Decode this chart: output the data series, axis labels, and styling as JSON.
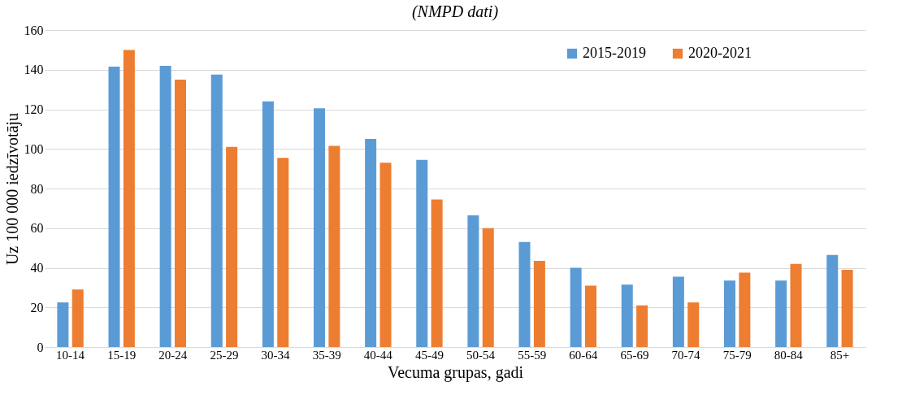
{
  "chart_data": {
    "type": "bar",
    "title": "(NMPD dati)",
    "xlabel": "Vecuma grupas, gadi",
    "ylabel": "Uz 100 000 iedzīvotāju",
    "categories": [
      "10-14",
      "15-19",
      "20-24",
      "25-29",
      "30-34",
      "35-39",
      "40-44",
      "45-49",
      "50-54",
      "55-59",
      "60-64",
      "65-69",
      "70-74",
      "75-79",
      "80-84",
      "85+"
    ],
    "series": [
      {
        "name": "2015-2019",
        "color": "#5b9bd5",
        "values": [
          22.5,
          141.5,
          142,
          137.5,
          124,
          120.5,
          105,
          94.5,
          66.5,
          53,
          40,
          31.5,
          35.5,
          33.5,
          33.5,
          46.5
        ]
      },
      {
        "name": "2020-2021",
        "color": "#ed7d31",
        "values": [
          29,
          150,
          135,
          101,
          95.5,
          101.5,
          93,
          74.5,
          60,
          43.5,
          31,
          21,
          22.5,
          37.5,
          42,
          39
        ]
      }
    ],
    "ylim": [
      0,
      160
    ],
    "yticks": [
      0,
      20,
      40,
      60,
      80,
      100,
      120,
      140,
      160
    ],
    "grid": "y",
    "legend": "top right"
  }
}
